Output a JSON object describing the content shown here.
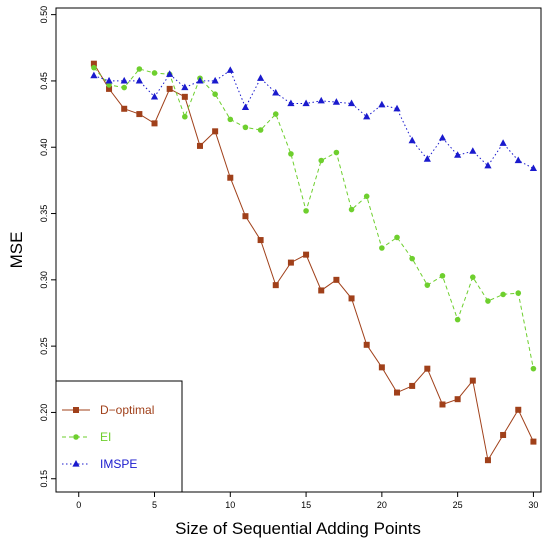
{
  "chart_data": {
    "type": "line",
    "xlabel": "Size of Sequential Adding Points",
    "ylabel": "MSE",
    "xlim": [
      -1.5,
      30.5
    ],
    "ylim": [
      0.14,
      0.505
    ],
    "x_ticks": [
      0,
      5,
      10,
      15,
      20,
      25,
      30
    ],
    "x_tick_labels": [
      "0",
      "5",
      "10",
      "15",
      "20",
      "25",
      "30"
    ],
    "y_ticks": [
      0.15,
      0.2,
      0.25,
      0.3,
      0.35,
      0.4,
      0.45,
      0.5
    ],
    "y_tick_labels": [
      "0.15",
      "0.20",
      "0.25",
      "0.30",
      "0.35",
      "0.40",
      "0.45",
      "0.50"
    ],
    "grid": false,
    "legend_position": "bottom-left",
    "x": [
      1,
      2,
      3,
      4,
      5,
      6,
      7,
      8,
      9,
      10,
      11,
      12,
      13,
      14,
      15,
      16,
      17,
      18,
      19,
      20,
      21,
      22,
      23,
      24,
      25,
      26,
      27,
      28,
      29,
      30
    ],
    "series": [
      {
        "name": "D−optimal",
        "color": "#a0401a",
        "marker": "square",
        "line_style": "solid",
        "values": [
          0.463,
          0.444,
          0.429,
          0.425,
          0.418,
          0.444,
          0.438,
          0.401,
          0.412,
          0.377,
          0.348,
          0.33,
          0.296,
          0.313,
          0.319,
          0.292,
          0.3,
          0.286,
          0.251,
          0.234,
          0.215,
          0.22,
          0.233,
          0.206,
          0.21,
          0.224,
          0.164,
          0.183,
          0.202,
          0.178
        ]
      },
      {
        "name": "EI",
        "color": "#6ecf2e",
        "marker": "circle",
        "line_style": "dashed",
        "values": [
          0.46,
          0.447,
          0.445,
          0.459,
          0.456,
          0.455,
          0.423,
          0.452,
          0.44,
          0.421,
          0.415,
          0.413,
          0.425,
          0.395,
          0.352,
          0.39,
          0.396,
          0.353,
          0.363,
          0.324,
          0.332,
          0.316,
          0.296,
          0.303,
          0.27,
          0.302,
          0.284,
          0.289,
          0.29,
          0.233
        ]
      },
      {
        "name": "IMSPE",
        "color": "#1a1acd",
        "marker": "triangle",
        "line_style": "dotted",
        "values": [
          0.454,
          0.45,
          0.45,
          0.45,
          0.438,
          0.455,
          0.445,
          0.45,
          0.45,
          0.458,
          0.43,
          0.452,
          0.441,
          0.433,
          0.433,
          0.435,
          0.434,
          0.433,
          0.423,
          0.432,
          0.429,
          0.405,
          0.391,
          0.407,
          0.394,
          0.397,
          0.386,
          0.403,
          0.39,
          0.384
        ]
      }
    ]
  }
}
